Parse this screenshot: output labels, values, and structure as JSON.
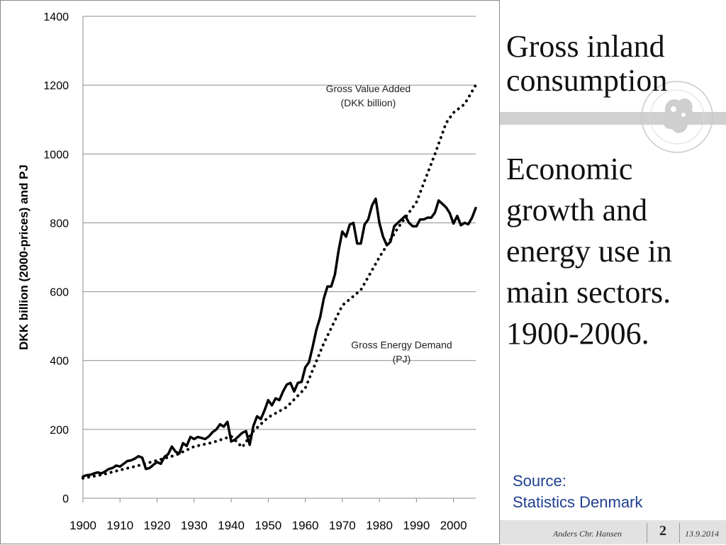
{
  "slide": {
    "title_line1": "Gross inland",
    "title_line2": "consumption",
    "subtitle_lines": [
      "Economic",
      "growth and",
      "energy use in",
      "main sectors.",
      "1900-2006."
    ],
    "source_label": "Source:",
    "source_name": "Statistics Denmark",
    "footer_author": "Anders Chr. Hansen",
    "footer_page": "2",
    "footer_date": "13.9.2014",
    "logo_icon": "university-seal-icon"
  },
  "chart_data": {
    "type": "line",
    "title": "",
    "xlabel": "",
    "ylabel": "DKK billion (2000-prices) and  PJ",
    "xlim": [
      1900,
      2006
    ],
    "ylim": [
      0,
      1400
    ],
    "y_ticks": [
      "0",
      "200",
      "400",
      "600",
      "800",
      "1000",
      "1200",
      "1400"
    ],
    "x_ticks": [
      "1900",
      "1910",
      "1920",
      "1930",
      "1940",
      "1950",
      "1960",
      "1970",
      "1980",
      "1990",
      "2000"
    ],
    "grid": "horizontal",
    "annotations": [
      {
        "label_line1": "Gross Value Added",
        "label_line2": "(DKK billion)",
        "x": 1977,
        "y": 1180
      },
      {
        "label_line1": "Gross Energy Demand",
        "label_line2": "(PJ)",
        "x": 1986,
        "y": 435
      }
    ],
    "series": [
      {
        "style": "solid",
        "x": [
          1900,
          1901,
          1902,
          1903,
          1904,
          1905,
          1906,
          1907,
          1908,
          1909,
          1910,
          1911,
          1912,
          1913,
          1914,
          1915,
          1916,
          1917,
          1918,
          1919,
          1920,
          1921,
          1922,
          1923,
          1924,
          1925,
          1926,
          1927,
          1928,
          1929,
          1930,
          1931,
          1932,
          1933,
          1934,
          1935,
          1936,
          1937,
          1938,
          1939,
          1940,
          1941,
          1942,
          1943,
          1944,
          1945,
          1946,
          1947,
          1948,
          1949,
          1950,
          1951,
          1952,
          1953,
          1954,
          1955,
          1956,
          1957,
          1958,
          1959,
          1960,
          1961,
          1962,
          1963,
          1964,
          1965,
          1966,
          1967,
          1968,
          1969,
          1970,
          1971,
          1972,
          1973,
          1974,
          1975,
          1976,
          1977,
          1978,
          1979,
          1980,
          1981,
          1982,
          1983,
          1984,
          1985,
          1986,
          1987,
          1988,
          1989,
          1990,
          1991,
          1992,
          1993,
          1994,
          1995,
          1996,
          1997,
          1998,
          1999,
          2000,
          2001,
          2002,
          2003,
          2004,
          2005,
          2006
        ],
        "values": [
          63,
          67,
          68,
          72,
          75,
          72,
          78,
          85,
          88,
          95,
          92,
          100,
          108,
          110,
          115,
          122,
          118,
          85,
          88,
          97,
          105,
          100,
          120,
          128,
          150,
          135,
          130,
          160,
          152,
          178,
          172,
          178,
          175,
          172,
          180,
          192,
          200,
          215,
          208,
          222,
          165,
          170,
          180,
          190,
          195,
          155,
          210,
          238,
          230,
          255,
          285,
          270,
          290,
          285,
          310,
          330,
          335,
          310,
          335,
          338,
          380,
          395,
          440,
          490,
          525,
          580,
          615,
          615,
          650,
          720,
          775,
          760,
          795,
          800,
          740,
          740,
          795,
          810,
          850,
          870,
          800,
          760,
          735,
          745,
          790,
          800,
          810,
          820,
          800,
          790,
          790,
          810,
          810,
          815,
          815,
          830,
          865,
          855,
          845,
          828,
          798,
          820,
          793,
          800,
          796,
          815,
          843
        ]
      },
      {
        "style": "dotted",
        "x": [
          1900,
          1905,
          1910,
          1915,
          1920,
          1925,
          1930,
          1935,
          1940,
          1943,
          1946,
          1950,
          1955,
          1960,
          1965,
          1970,
          1975,
          1980,
          1985,
          1990,
          1995,
          1998,
          2000,
          2003,
          2006
        ],
        "values": [
          58,
          68,
          82,
          95,
          110,
          125,
          150,
          162,
          180,
          148,
          195,
          235,
          265,
          320,
          450,
          560,
          605,
          700,
          785,
          860,
          1000,
          1090,
          1120,
          1145,
          1200
        ]
      }
    ]
  }
}
